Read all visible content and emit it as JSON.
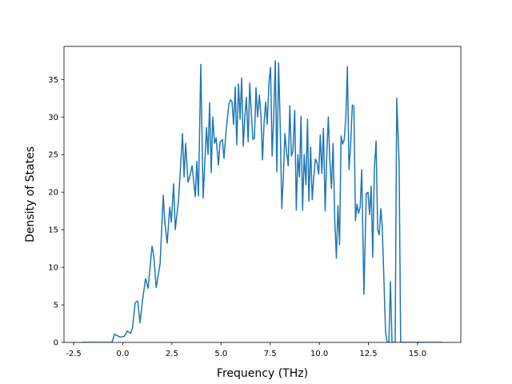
{
  "chart_data": {
    "type": "line",
    "xlabel": "Frequency (THz)",
    "ylabel": "Density of States",
    "xlim": [
      -2.99,
      17.2
    ],
    "ylim": [
      0,
      39.4
    ],
    "xticks": [
      {
        "value": -2.5,
        "label": "-2.5"
      },
      {
        "value": 0,
        "label": "0.0"
      },
      {
        "value": 2.5,
        "label": "2.5"
      },
      {
        "value": 5,
        "label": "5.0"
      },
      {
        "value": 7.5,
        "label": "7.5"
      },
      {
        "value": 10,
        "label": "10.0"
      },
      {
        "value": 12.5,
        "label": "12.5"
      },
      {
        "value": 15,
        "label": "15.0"
      }
    ],
    "yticks": [
      0,
      5,
      10,
      15,
      20,
      25,
      30,
      35
    ],
    "grid": false,
    "series": [
      {
        "color": "#1f77b4",
        "x": [
          -2.07,
          -0.55,
          -0.42,
          -0.14,
          0.07,
          0.23,
          0.4,
          0.5,
          0.63,
          0.76,
          0.88,
          1.0,
          1.16,
          1.29,
          1.49,
          1.58,
          1.7,
          1.9,
          2.06,
          2.14,
          2.26,
          2.39,
          2.47,
          2.59,
          2.67,
          2.84,
          3.04,
          3.12,
          3.2,
          3.32,
          3.4,
          3.53,
          3.69,
          3.77,
          3.85,
          3.97,
          4.09,
          4.26,
          4.34,
          4.42,
          4.5,
          4.58,
          4.67,
          4.75,
          4.87,
          4.95,
          5.07,
          5.15,
          5.27,
          5.4,
          5.48,
          5.56,
          5.64,
          5.72,
          5.8,
          5.89,
          5.97,
          6.05,
          6.13,
          6.21,
          6.29,
          6.38,
          6.46,
          6.54,
          6.62,
          6.7,
          6.78,
          6.86,
          6.95,
          7.03,
          7.11,
          7.19,
          7.27,
          7.35,
          7.44,
          7.52,
          7.6,
          7.68,
          7.76,
          7.84,
          7.93,
          8.01,
          8.09,
          8.17,
          8.25,
          8.33,
          8.42,
          8.5,
          8.58,
          8.66,
          8.75,
          8.83,
          8.91,
          8.99,
          9.07,
          9.15,
          9.23,
          9.32,
          9.4,
          9.47,
          9.56,
          9.64,
          9.72,
          9.8,
          9.88,
          9.97,
          10.05,
          10.13,
          10.21,
          10.3,
          10.38,
          10.46,
          10.54,
          10.62,
          10.7,
          10.79,
          10.87,
          10.95,
          11.03,
          11.11,
          11.19,
          11.27,
          11.35,
          11.43,
          11.51,
          11.59,
          11.68,
          11.76,
          11.84,
          11.92,
          12.0,
          12.08,
          12.16,
          12.27,
          12.39,
          12.48,
          12.56,
          12.64,
          12.72,
          12.8,
          12.89,
          12.97,
          13.05,
          13.13,
          13.2,
          13.37,
          13.45,
          13.54,
          13.62,
          13.7,
          13.86,
          13.94,
          14.06,
          14.14,
          16.26
        ],
        "values": [
          0,
          0,
          1.1,
          0.7,
          0.8,
          1.5,
          1.2,
          2.0,
          5.3,
          5.5,
          2.6,
          5.5,
          8.5,
          7.2,
          12.8,
          11.5,
          7.3,
          10.5,
          19.6,
          16,
          13.2,
          18,
          16,
          21.1,
          15,
          19,
          27.8,
          22,
          26.5,
          21.3,
          22,
          23.5,
          19.4,
          24.1,
          19.5,
          37,
          19.2,
          28.6,
          25,
          31.9,
          22.6,
          30,
          26.5,
          27.2,
          23.6,
          26.7,
          27,
          24.5,
          28.5,
          31.7,
          32.3,
          32,
          29,
          34,
          26.3,
          34.4,
          29.7,
          35.2,
          26.1,
          30,
          32.6,
          26.7,
          34.5,
          30.5,
          27,
          27.2,
          33.9,
          30,
          32.9,
          30.2,
          24.3,
          29.2,
          32,
          29,
          34.6,
          36.6,
          24.8,
          30,
          37.5,
          22.7,
          37.2,
          29,
          17.8,
          22,
          27.8,
          25.5,
          23.5,
          31.5,
          24.8,
          25.5,
          30.9,
          17.6,
          25,
          22,
          30.1,
          17.6,
          25,
          21,
          29.7,
          18.8,
          26,
          19,
          22,
          24.4,
          24,
          22.4,
          27.6,
          22.5,
          28.5,
          17.5,
          25,
          30,
          24,
          20.5,
          26.5,
          16.1,
          11.2,
          18.2,
          13,
          27.5,
          26.4,
          27,
          30,
          36.7,
          23,
          26,
          31.6,
          31.4,
          16.2,
          18.4,
          17.2,
          18,
          23,
          6.4,
          19.8,
          20,
          17,
          20.8,
          11.3,
          23,
          26.8,
          15,
          14.3,
          17.8,
          15.6,
          1.5,
          0,
          0,
          8.1,
          0,
          0,
          32.5,
          24,
          0,
          0
        ]
      }
    ]
  }
}
